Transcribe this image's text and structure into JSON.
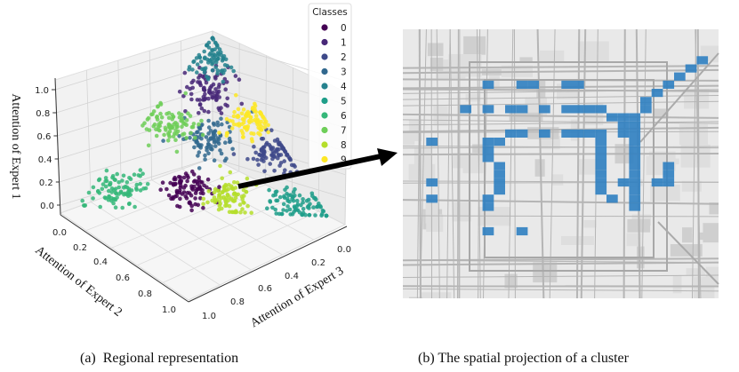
{
  "chart_data": [
    {
      "type": "scatter",
      "subtype": "3d-scatter-simplex",
      "title": "",
      "axes": {
        "z": {
          "label": "Attention of Expert 1",
          "ticks": [
            "0.0",
            "0.2",
            "0.4",
            "0.6",
            "0.8",
            "1.0"
          ],
          "range": [
            0,
            1
          ]
        },
        "x": {
          "label": "Attention of Expert 2",
          "ticks": [
            "0.0",
            "0.2",
            "0.4",
            "0.6",
            "0.8",
            "1.0"
          ],
          "range": [
            0,
            1
          ]
        },
        "y": {
          "label": "Attention of Expert 3",
          "ticks": [
            "0.0",
            "0.2",
            "0.4",
            "0.6",
            "0.8",
            "1.0"
          ],
          "range": [
            0,
            1
          ]
        }
      },
      "grid": true,
      "legend": {
        "title": "Classes",
        "placement": "top-right",
        "entries": [
          "0",
          "1",
          "2",
          "3",
          "4",
          "5",
          "6",
          "7",
          "8",
          "9"
        ]
      },
      "series": [
        {
          "name": "0",
          "color": "#440154",
          "centroid": {
            "expert1": 0.12,
            "expert2": 0.5,
            "expert3": 0.38
          }
        },
        {
          "name": "1",
          "color": "#482878",
          "centroid": {
            "expert1": 0.7,
            "expert2": 0.15,
            "expert3": 0.15
          }
        },
        {
          "name": "2",
          "color": "#3e4989",
          "centroid": {
            "expert1": 0.35,
            "expert2": 0.05,
            "expert3": 0.6
          }
        },
        {
          "name": "3",
          "color": "#31688e",
          "centroid": {
            "expert1": 0.4,
            "expert2": 0.3,
            "expert3": 0.3
          }
        },
        {
          "name": "4",
          "color": "#26828e",
          "centroid": {
            "expert1": 0.9,
            "expert2": 0.05,
            "expert3": 0.05
          }
        },
        {
          "name": "5",
          "color": "#1f9e89",
          "centroid": {
            "expert1": 0.05,
            "expert2": 0.1,
            "expert3": 0.85
          }
        },
        {
          "name": "6",
          "color": "#35b779",
          "centroid": {
            "expert1": 0.1,
            "expert2": 0.8,
            "expert3": 0.1
          }
        },
        {
          "name": "7",
          "color": "#6ece58",
          "centroid": {
            "expert1": 0.5,
            "expert2": 0.4,
            "expert3": 0.1
          }
        },
        {
          "name": "8",
          "color": "#b5de2b",
          "centroid": {
            "expert1": 0.08,
            "expert2": 0.35,
            "expert3": 0.57
          }
        },
        {
          "name": "9",
          "color": "#fde725",
          "centroid": {
            "expert1": 0.55,
            "expert2": 0.05,
            "expert3": 0.4
          }
        }
      ],
      "points_per_class": 90
    },
    {
      "type": "heatmap",
      "subtype": "map-grid-cluster",
      "cell_color": "#2f7fc1",
      "cells_col_row": [
        [
          24,
          0
        ],
        [
          23,
          1
        ],
        [
          22,
          2
        ],
        [
          21,
          3
        ],
        [
          20,
          4
        ],
        [
          19,
          5
        ],
        [
          19,
          6
        ],
        [
          5,
          3
        ],
        [
          8,
          3
        ],
        [
          9,
          3
        ],
        [
          12,
          3
        ],
        [
          13,
          3
        ],
        [
          3,
          6
        ],
        [
          5,
          6
        ],
        [
          7,
          6
        ],
        [
          8,
          6
        ],
        [
          10,
          6
        ],
        [
          12,
          6
        ],
        [
          13,
          6
        ],
        [
          14,
          6
        ],
        [
          15,
          6
        ],
        [
          16,
          7
        ],
        [
          17,
          7
        ],
        [
          18,
          7
        ],
        [
          17,
          8
        ],
        [
          18,
          8
        ],
        [
          7,
          9
        ],
        [
          8,
          9
        ],
        [
          10,
          9
        ],
        [
          12,
          9
        ],
        [
          13,
          9
        ],
        [
          14,
          9
        ],
        [
          15,
          9
        ],
        [
          17,
          9
        ],
        [
          18,
          9
        ],
        [
          0,
          10
        ],
        [
          5,
          10
        ],
        [
          6,
          10
        ],
        [
          15,
          10
        ],
        [
          18,
          10
        ],
        [
          5,
          11
        ],
        [
          15,
          11
        ],
        [
          18,
          11
        ],
        [
          5,
          12
        ],
        [
          15,
          12
        ],
        [
          18,
          12
        ],
        [
          6,
          13
        ],
        [
          15,
          13
        ],
        [
          18,
          13
        ],
        [
          21,
          13
        ],
        [
          6,
          14
        ],
        [
          15,
          14
        ],
        [
          18,
          14
        ],
        [
          21,
          14
        ],
        [
          0,
          15
        ],
        [
          6,
          15
        ],
        [
          15,
          15
        ],
        [
          17,
          15
        ],
        [
          18,
          15
        ],
        [
          20,
          15
        ],
        [
          21,
          15
        ],
        [
          6,
          16
        ],
        [
          15,
          16
        ],
        [
          18,
          16
        ],
        [
          0,
          17
        ],
        [
          5,
          17
        ],
        [
          16,
          17
        ],
        [
          18,
          17
        ],
        [
          5,
          18
        ],
        [
          18,
          18
        ],
        [
          5,
          21
        ],
        [
          8,
          21
        ]
      ]
    }
  ],
  "captions": {
    "a": "(a)  Regional representation",
    "b": "(b) The spatial projection of a cluster"
  }
}
